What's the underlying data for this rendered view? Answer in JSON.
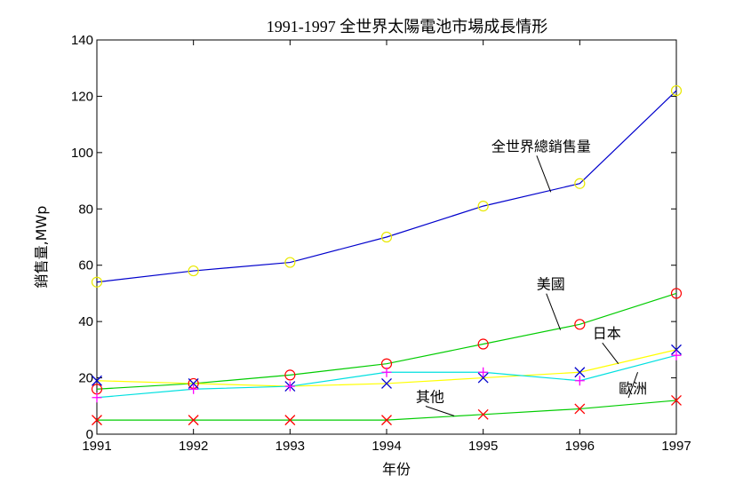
{
  "chart_data": {
    "type": "line",
    "title": "1991-1997 全世界太陽電池市場成長情形",
    "xlabel": "年份",
    "ylabel": "銷售量,MWp",
    "x": [
      1991,
      1992,
      1993,
      1994,
      1995,
      1996,
      1997
    ],
    "xlim": [
      1991,
      1997
    ],
    "ylim": [
      0,
      140
    ],
    "xticks": [
      "1991",
      "1992",
      "1993",
      "1994",
      "1995",
      "1996",
      "1997"
    ],
    "yticks": [
      "0",
      "20",
      "40",
      "60",
      "80",
      "100",
      "120",
      "140"
    ],
    "grid": false,
    "series": [
      {
        "key": "total",
        "values": [
          54,
          58,
          61,
          70,
          81,
          89,
          122
        ],
        "line_color": "#0000cc",
        "marker": "circle",
        "marker_color": "#e8e800"
      },
      {
        "key": "usa",
        "values": [
          16,
          18,
          21,
          25,
          32,
          39,
          50
        ],
        "line_color": "#00cc00",
        "marker": "circle",
        "marker_color": "#ff0000"
      },
      {
        "key": "japan",
        "values": [
          19,
          18,
          17,
          18,
          20,
          22,
          30
        ],
        "line_color": "#ffff00",
        "marker": "x",
        "marker_color": "#0000cc"
      },
      {
        "key": "europe",
        "values": [
          13,
          16,
          17,
          22,
          22,
          19,
          28
        ],
        "line_color": "#00e0e0",
        "marker": "plus",
        "marker_color": "#ff00ff"
      },
      {
        "key": "other",
        "values": [
          5,
          5,
          5,
          5,
          7,
          9,
          12
        ],
        "line_color": "#00cc00",
        "marker": "x",
        "marker_color": "#ff0000"
      }
    ],
    "annotations": [
      {
        "text": "全世界總銷售量",
        "x": 1995.6,
        "y": 100.5,
        "arrow_to": [
          1995.7,
          86
        ]
      },
      {
        "text": "美國",
        "x": 1995.7,
        "y": 51.5,
        "arrow_to": [
          1995.8,
          37
        ]
      },
      {
        "text": "日本",
        "x": 1996.28,
        "y": 34,
        "arrow_to": [
          1996.4,
          25
        ]
      },
      {
        "text": "歐洲",
        "x": 1996.55,
        "y": 14.5,
        "arrow_to": [
          1996.6,
          22
        ]
      },
      {
        "text": "其他",
        "x": 1994.45,
        "y": 11.5,
        "arrow_to": [
          1994.7,
          6.5
        ]
      }
    ]
  }
}
